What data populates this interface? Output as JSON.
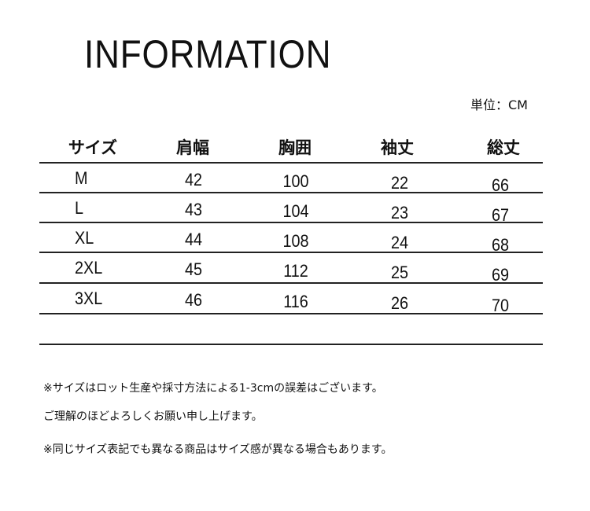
{
  "title": "INFORMATION",
  "unit": "単位：CM",
  "table": {
    "headers": [
      "サイズ",
      "肩幅",
      "胸囲",
      "袖丈",
      "総丈"
    ],
    "rows": [
      [
        "M",
        "42",
        "100",
        "22",
        "66"
      ],
      [
        "L",
        "43",
        "104",
        "23",
        "67"
      ],
      [
        "XL",
        "44",
        "108",
        "24",
        "68"
      ],
      [
        "2XL",
        "45",
        "112",
        "25",
        "69"
      ],
      [
        "3XL",
        "46",
        "116",
        "26",
        "70"
      ]
    ]
  },
  "notes": [
    "※サイズはロット生産や採寸方法による1-3cmの誤差はございます。",
    "ご理解のほどよろしくお願い申し上げます。",
    "※同じサイズ表記でも異なる商品はサイズ感が異なる場合もあります。"
  ]
}
